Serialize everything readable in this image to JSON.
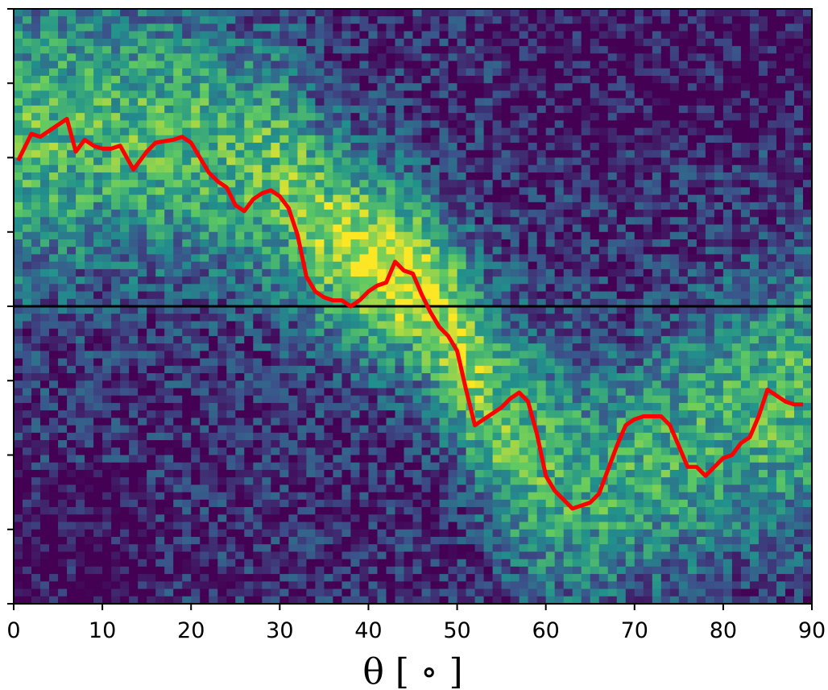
{
  "chart_data": {
    "type": "heatmap",
    "xlabel": "θ [ ∘ ]",
    "xlim": [
      0,
      90
    ],
    "x_ticks": [
      "0",
      "10",
      "20",
      "30",
      "40",
      "50",
      "60",
      "70",
      "80",
      "90"
    ],
    "x_tick_values": [
      0,
      10,
      20,
      30,
      40,
      50,
      60,
      70,
      80,
      90
    ],
    "ylim": [
      -1,
      1
    ],
    "y_tick_values": [
      -1,
      -0.75,
      -0.5,
      -0.25,
      0,
      0.25,
      0.5,
      0.75,
      1
    ],
    "reference_line": {
      "y": 0,
      "color": "#000000"
    },
    "colormap": [
      "#440154",
      "#3b528b",
      "#21918c",
      "#5ec962",
      "#fde725"
    ],
    "heatmap_bins": {
      "nx": 90,
      "ny": 80
    },
    "heatmap_density": {
      "x_centers": [
        0,
        5,
        10,
        15,
        20,
        25,
        30,
        35,
        40,
        45,
        50,
        55,
        60,
        65,
        70,
        75,
        80,
        85,
        90
      ],
      "ridge_y": [
        0.55,
        0.58,
        0.6,
        0.58,
        0.55,
        0.5,
        0.45,
        0.25,
        0.15,
        0.1,
        -0.1,
        -0.4,
        -0.55,
        -0.6,
        -0.55,
        -0.5,
        -0.4,
        -0.35,
        -0.3
      ],
      "ridge_width": [
        0.35,
        0.35,
        0.33,
        0.33,
        0.32,
        0.3,
        0.3,
        0.25,
        0.22,
        0.22,
        0.25,
        0.3,
        0.3,
        0.3,
        0.28,
        0.3,
        0.32,
        0.32,
        0.32
      ],
      "peak": [
        0.55,
        0.55,
        0.55,
        0.55,
        0.55,
        0.55,
        0.6,
        0.7,
        0.85,
        0.85,
        0.75,
        0.6,
        0.55,
        0.5,
        0.5,
        0.5,
        0.5,
        0.55,
        0.55
      ]
    },
    "series": [
      {
        "color": "#ff0000",
        "x": [
          0.5,
          2,
          3,
          4,
          6,
          7,
          8,
          9,
          10,
          11,
          12,
          13.5,
          15,
          16,
          18,
          19,
          20,
          21,
          22,
          23,
          24,
          25,
          26,
          27,
          28,
          29,
          30,
          31,
          32,
          33,
          34,
          35,
          36,
          37,
          38,
          39,
          40,
          41,
          42,
          43,
          44,
          45,
          46,
          47,
          48,
          49,
          50,
          51,
          52,
          53,
          54,
          55,
          56,
          57,
          58,
          59,
          60,
          61,
          62,
          63,
          64,
          65,
          66,
          67,
          68,
          69,
          70,
          71,
          72,
          73,
          74,
          75,
          76,
          77,
          78,
          79,
          80,
          81,
          82,
          83,
          84,
          85,
          86,
          87,
          88,
          89
        ],
        "y": [
          0.49,
          0.58,
          0.57,
          0.59,
          0.63,
          0.52,
          0.56,
          0.54,
          0.53,
          0.53,
          0.54,
          0.46,
          0.52,
          0.55,
          0.56,
          0.57,
          0.55,
          0.5,
          0.45,
          0.42,
          0.4,
          0.34,
          0.32,
          0.36,
          0.38,
          0.39,
          0.37,
          0.33,
          0.24,
          0.1,
          0.05,
          0.03,
          0.02,
          0.02,
          0.0,
          0.02,
          0.05,
          0.07,
          0.08,
          0.15,
          0.12,
          0.11,
          0.04,
          -0.02,
          -0.07,
          -0.1,
          -0.15,
          -0.28,
          -0.4,
          -0.38,
          -0.36,
          -0.34,
          -0.31,
          -0.29,
          -0.32,
          -0.43,
          -0.57,
          -0.62,
          -0.65,
          -0.68,
          -0.67,
          -0.66,
          -0.63,
          -0.55,
          -0.47,
          -0.4,
          -0.38,
          -0.37,
          -0.37,
          -0.37,
          -0.4,
          -0.47,
          -0.54,
          -0.54,
          -0.57,
          -0.54,
          -0.51,
          -0.5,
          -0.46,
          -0.44,
          -0.37,
          -0.28,
          -0.3,
          -0.32,
          -0.33,
          -0.33
        ]
      }
    ],
    "grid": false,
    "legend": "none"
  }
}
